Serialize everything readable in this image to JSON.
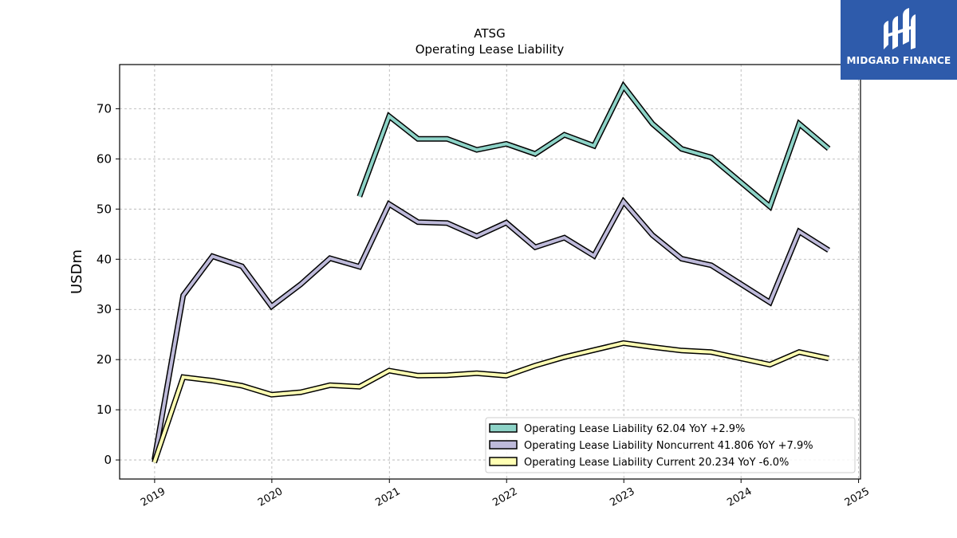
{
  "brand": {
    "name": "MIDGARD FINANCE",
    "bg_color": "#2e5bab"
  },
  "chart_data": {
    "type": "line",
    "title": "ATSG",
    "subtitle": "Operating Lease Liability",
    "ylabel": "USDm",
    "xlabel": "",
    "ylim": [
      -3.8,
      78.8
    ],
    "xlim": [
      "2018-09-14",
      "2025-01-07"
    ],
    "yticks": [
      0,
      10,
      20,
      30,
      40,
      50,
      60,
      70
    ],
    "xticks": [
      "2019",
      "2020",
      "2021",
      "2022",
      "2023",
      "2024",
      "2025"
    ],
    "grid": true,
    "legend_position": "lower-right",
    "series": [
      {
        "name": "Operating Lease Liability",
        "legend_label": "Operating Lease Liability  62.04 YoY +2.9%",
        "color": "#8dd3c7",
        "x": [
          "2020-09-30",
          "2020-12-31",
          "2021-03-31",
          "2021-06-30",
          "2021-09-30",
          "2021-12-31",
          "2022-03-31",
          "2022-06-30",
          "2022-09-30",
          "2022-12-31",
          "2023-03-31",
          "2023-06-30",
          "2023-09-30",
          "2024-03-31",
          "2024-06-30",
          "2024-09-30"
        ],
        "values": [
          52.5,
          68.5,
          64.0,
          64.0,
          61.8,
          63.0,
          61.0,
          64.8,
          62.6,
          74.5,
          67.0,
          62.0,
          60.3,
          50.5,
          67.0,
          62.04
        ]
      },
      {
        "name": "Operating Lease Liability Noncurrent",
        "legend_label": "Operating Lease Liability Noncurrent  41.806 YoY +7.9%",
        "color": "#bebada",
        "x": [
          "2018-12-31",
          "2019-03-31",
          "2019-06-30",
          "2019-09-30",
          "2019-12-31",
          "2020-03-31",
          "2020-06-30",
          "2020-09-30",
          "2020-12-31",
          "2021-03-31",
          "2021-06-30",
          "2021-09-30",
          "2021-12-31",
          "2022-03-31",
          "2022-06-30",
          "2022-09-30",
          "2022-12-31",
          "2023-03-31",
          "2023-06-30",
          "2023-09-30",
          "2024-03-31",
          "2024-06-30",
          "2024-09-30"
        ],
        "values": [
          0,
          32.8,
          40.6,
          38.6,
          30.6,
          35.0,
          40.2,
          38.5,
          51.0,
          47.4,
          47.2,
          44.6,
          47.3,
          42.4,
          44.3,
          40.7,
          51.5,
          44.8,
          40.1,
          38.8,
          31.4,
          45.5,
          41.806
        ]
      },
      {
        "name": "Operating Lease Liability Current",
        "legend_label": "Operating Lease Liability Current  20.234 YoY -6.0%",
        "color": "#ffffb3",
        "x": [
          "2018-12-31",
          "2019-03-31",
          "2019-06-30",
          "2019-09-30",
          "2019-12-31",
          "2020-03-31",
          "2020-06-30",
          "2020-09-30",
          "2020-12-31",
          "2021-03-31",
          "2021-06-30",
          "2021-09-30",
          "2021-12-31",
          "2022-03-31",
          "2022-06-30",
          "2022-09-30",
          "2022-12-31",
          "2023-03-31",
          "2023-06-30",
          "2023-09-30",
          "2024-03-31",
          "2024-06-30",
          "2024-09-30"
        ],
        "values": [
          -0.5,
          16.5,
          15.8,
          14.8,
          13.0,
          13.5,
          14.9,
          14.6,
          17.8,
          16.8,
          16.9,
          17.3,
          16.8,
          18.8,
          20.5,
          21.9,
          23.3,
          22.5,
          21.8,
          21.5,
          19.0,
          21.5,
          20.234
        ]
      }
    ]
  }
}
